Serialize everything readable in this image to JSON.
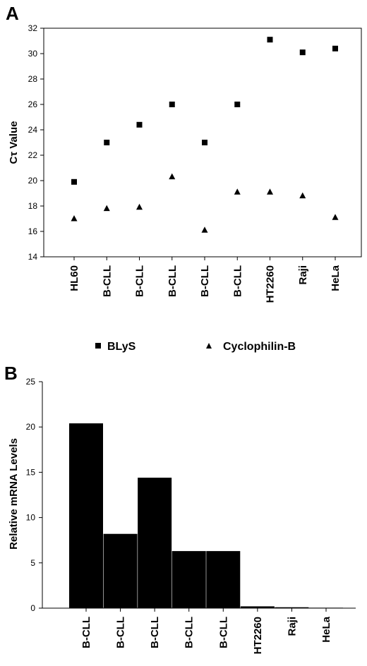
{
  "chart_data": [
    {
      "panel": "A",
      "type": "scatter",
      "ylabel": "Cτ Value",
      "xlabel": "",
      "categories": [
        "HL60",
        "B-CLL",
        "B-CLL",
        "B-CLL",
        "B-CLL",
        "B-CLL",
        "HT2260",
        "Raji",
        "HeLa"
      ],
      "ylim": [
        14,
        32
      ],
      "yticks": [
        14,
        16,
        18,
        20,
        22,
        24,
        26,
        28,
        30,
        32
      ],
      "legend_position": "bottom",
      "grid": false,
      "series": [
        {
          "name": "BLyS",
          "marker": "square",
          "color": "#000000",
          "values": [
            19.9,
            23.0,
            24.4,
            26.0,
            23.0,
            26.0,
            31.1,
            30.1,
            30.4
          ]
        },
        {
          "name": "Cyclophilin-B",
          "marker": "triangle",
          "color": "#000000",
          "values": [
            17.0,
            17.8,
            17.9,
            20.3,
            16.1,
            19.1,
            19.1,
            18.8,
            17.1
          ]
        }
      ]
    },
    {
      "panel": "B",
      "type": "bar",
      "ylabel": "Relative mRNA Levels",
      "xlabel": "",
      "categories": [
        "B-CLL",
        "B-CLL",
        "B-CLL",
        "B-CLL",
        "B-CLL",
        "HT2260",
        "Raji",
        "HeLa"
      ],
      "values": [
        20.4,
        8.2,
        14.4,
        6.3,
        6.3,
        0.2,
        0.1,
        0.05
      ],
      "ylim": [
        0,
        25
      ],
      "yticks": [
        0,
        5,
        10,
        15,
        20,
        25
      ],
      "color": "#000000",
      "grid": false
    }
  ]
}
